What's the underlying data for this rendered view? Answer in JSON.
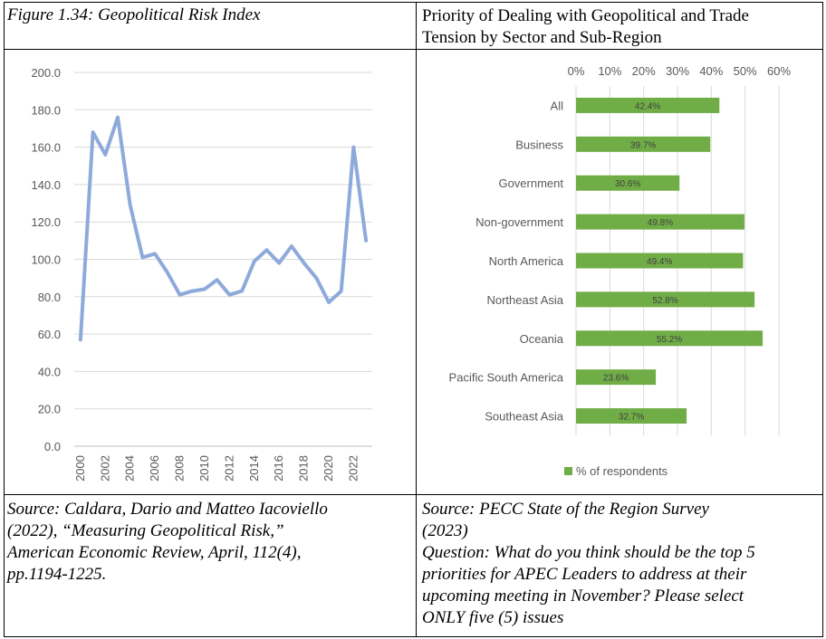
{
  "left_title": "Figure 1.34: Geopolitical Risk Index",
  "right_title_lines": [
    "Priority of Dealing with Geopolitical and Trade",
    "Tension by Sector and Sub-Region"
  ],
  "left_source_lines": [
    "Source: Caldara, Dario and Matteo Iacoviello",
    "(2022), “Measuring Geopolitical Risk,”",
    "American Economic Review, April, 112(4),",
    "pp.1194-1225."
  ],
  "right_source_lines": [
    "Source: PECC State of the Region Survey",
    "(2023)",
    "Question: What do you think should be the top 5",
    "priorities for APEC Leaders to address at their",
    "upcoming meeting in November?  Please select",
    "ONLY five (5) issues"
  ],
  "chart_data": [
    {
      "type": "line",
      "title": "",
      "xlabel": "",
      "ylabel": "",
      "ylim": [
        0,
        200
      ],
      "yticks": [
        "0.0",
        "20.0",
        "40.0",
        "60.0",
        "80.0",
        "100.0",
        "120.0",
        "140.0",
        "160.0",
        "180.0",
        "200.0"
      ],
      "xticks": [
        "2000",
        "2002",
        "2004",
        "2006",
        "2008",
        "2010",
        "2012",
        "2014",
        "2016",
        "2018",
        "2020",
        "2022"
      ],
      "x": [
        2000,
        2001,
        2002,
        2003,
        2004,
        2005,
        2006,
        2007,
        2008,
        2009,
        2010,
        2011,
        2012,
        2013,
        2014,
        2015,
        2016,
        2017,
        2018,
        2019,
        2020,
        2021,
        2022,
        2023
      ],
      "series": [
        {
          "values": [
            57,
            168,
            156,
            176,
            129,
            101,
            103,
            93,
            81,
            83,
            84,
            89,
            81,
            83,
            99,
            105,
            98,
            107,
            98,
            90,
            77,
            83,
            160,
            110
          ]
        }
      ],
      "color": "#8eaadb",
      "grid": true
    },
    {
      "type": "bar",
      "orientation": "horizontal",
      "categories": [
        "All",
        "Business",
        "Government",
        "Non-government",
        "North America",
        "Northeast Asia",
        "Oceania",
        "Pacific South America",
        "Southeast Asia"
      ],
      "values": [
        42.4,
        39.7,
        30.6,
        49.8,
        49.4,
        52.8,
        55.2,
        23.6,
        32.7
      ],
      "data_labels": [
        "42.4%",
        "39.7%",
        "30.6%",
        "49.8%",
        "49.4%",
        "52.8%",
        "55.2%",
        "23.6%",
        "32.7%"
      ],
      "xticks": [
        "0%",
        "10%",
        "20%",
        "30%",
        "40%",
        "50%",
        "60%"
      ],
      "xlim": [
        0,
        60
      ],
      "legend": "% of respondents",
      "legend_position": "bottom",
      "color": "#70ad47",
      "grid": true
    }
  ]
}
